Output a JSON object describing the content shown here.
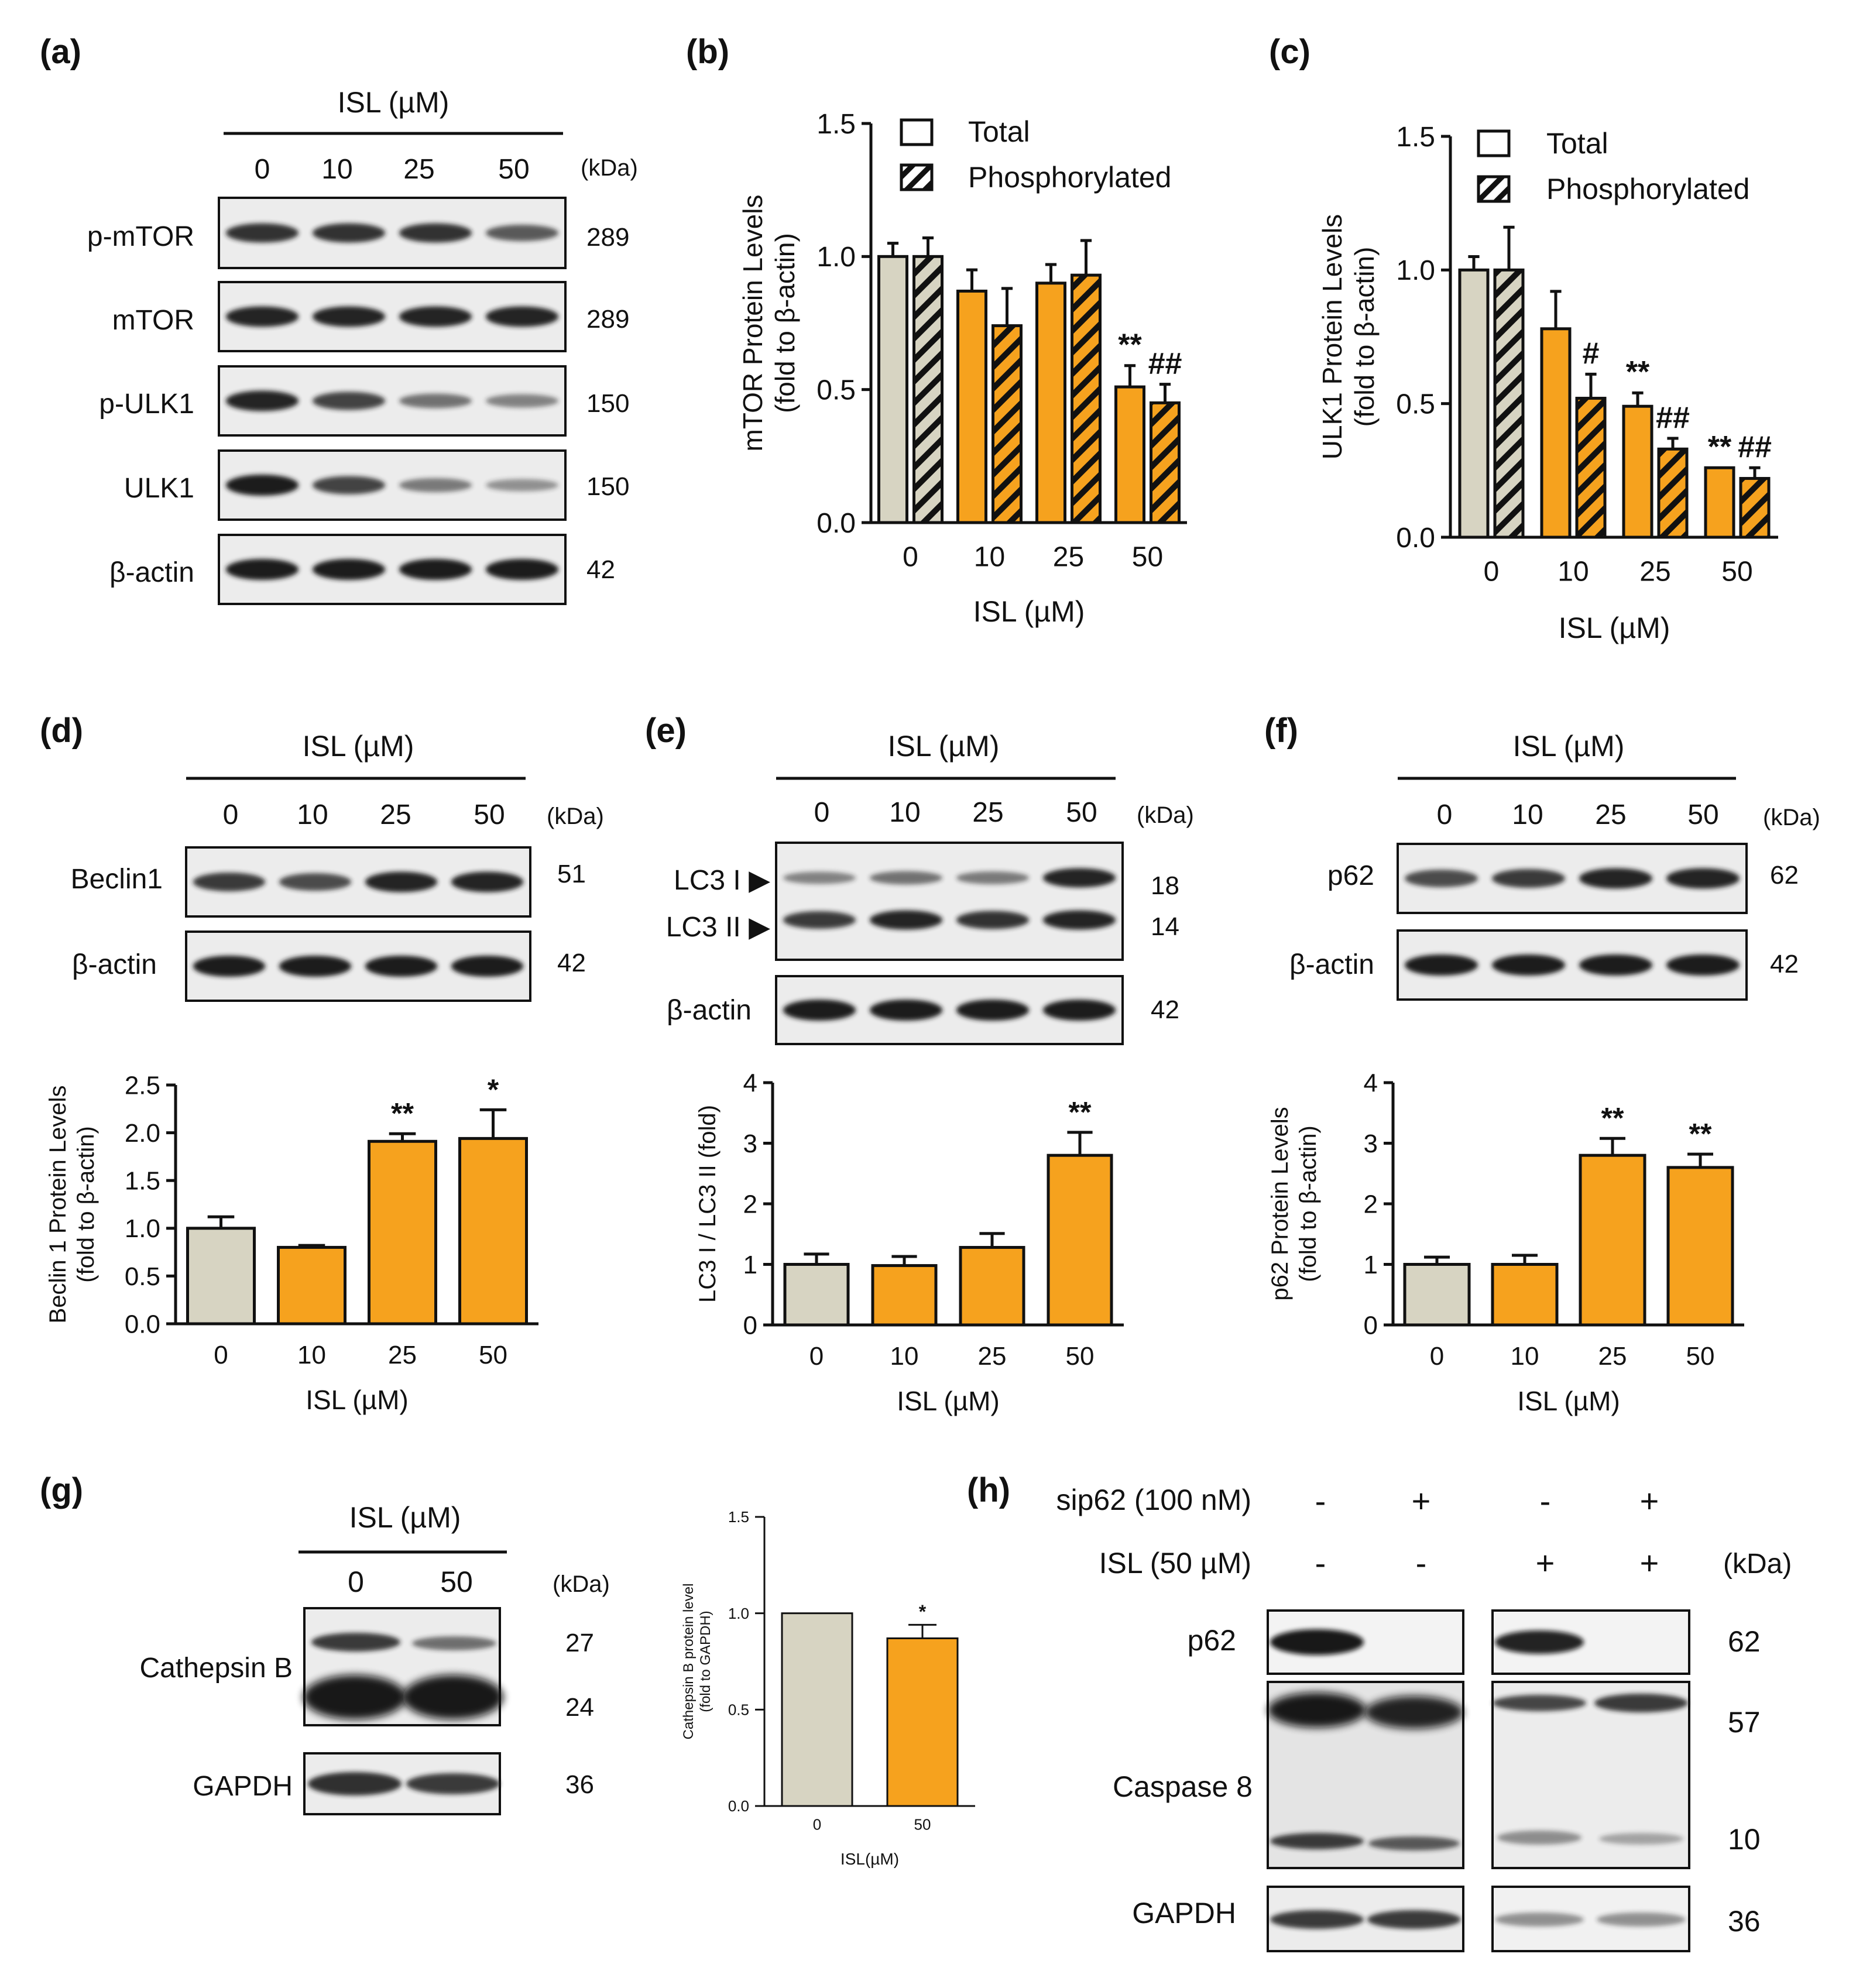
{
  "colors": {
    "control": "#d7d4c2",
    "treated": "#f6a21e",
    "axis": "#111111",
    "blot_bg": "#ececec",
    "band": "#1e1e1e"
  },
  "panels": {
    "a": {
      "letter": "(a)",
      "header": "ISL (µM)",
      "lanes": [
        "0",
        "10",
        "25",
        "50"
      ],
      "kda": "(kDa)",
      "blots": [
        {
          "label": "p-mTOR",
          "kda": "289",
          "intensity": [
            0.85,
            0.85,
            0.85,
            0.6
          ]
        },
        {
          "label": "mTOR",
          "kda": "289",
          "intensity": [
            0.95,
            0.95,
            0.95,
            0.95
          ]
        },
        {
          "label": "p-ULK1",
          "kda": "150",
          "intensity": [
            0.95,
            0.75,
            0.45,
            0.35
          ]
        },
        {
          "label": "ULK1",
          "kda": "150",
          "intensity": [
            1.0,
            0.75,
            0.4,
            0.25
          ]
        },
        {
          "label": "β-actin",
          "kda": "42",
          "intensity": [
            1.0,
            1.0,
            1.0,
            1.0
          ]
        }
      ]
    },
    "d_blot": {
      "letter": "(d)",
      "header": "ISL (µM)",
      "lanes": [
        "0",
        "10",
        "25",
        "50"
      ],
      "kda": "(kDa)",
      "blots": [
        {
          "label": "Beclin1",
          "kda": "51",
          "intensity": [
            0.8,
            0.7,
            0.95,
            0.95
          ]
        },
        {
          "label": "β-actin",
          "kda": "42",
          "intensity": [
            1.0,
            1.0,
            1.0,
            1.0
          ]
        }
      ]
    },
    "e_blot": {
      "letter": "(e)",
      "header": "ISL (µM)",
      "lanes": [
        "0",
        "10",
        "25",
        "50"
      ],
      "kda": "(kDa)",
      "lc3": {
        "label_top": "LC3 I ▶",
        "label_bottom": "LC3 II ▶",
        "kda_top": "18",
        "kda_bottom": "14",
        "intensity_top": [
          0.35,
          0.45,
          0.4,
          0.95
        ],
        "intensity_bottom": [
          0.8,
          0.95,
          0.85,
          0.95
        ]
      },
      "actin": {
        "label": "β-actin",
        "kda": "42",
        "intensity": [
          1.0,
          1.0,
          1.0,
          1.0
        ]
      }
    },
    "f_blot": {
      "letter": "(f)",
      "header": "ISL (µM)",
      "lanes": [
        "0",
        "10",
        "25",
        "50"
      ],
      "kda": "(kDa)",
      "blots": [
        {
          "label": "p62",
          "kda": "62",
          "intensity": [
            0.7,
            0.8,
            0.95,
            0.95
          ]
        },
        {
          "label": "β-actin",
          "kda": "42",
          "intensity": [
            1.0,
            1.0,
            1.0,
            1.0
          ]
        }
      ]
    },
    "g_blot": {
      "letter": "(g)",
      "header": "ISL (µM)",
      "lanes": [
        "0",
        "50"
      ],
      "kda": "(kDa)",
      "cathepsin": {
        "label": "Cathepsin B",
        "kda_top": "27",
        "kda_bottom": "24"
      },
      "gapdh": {
        "label": "GAPDH",
        "kda": "36"
      }
    },
    "h_blot": {
      "letter": "(h)",
      "sip62_label": "sip62 (100 nM)",
      "sip62_signs": [
        "-",
        "+",
        "-",
        "+"
      ],
      "isl_label": "ISL (50 µM)",
      "isl_signs": [
        "-",
        "-",
        "+",
        "+"
      ],
      "kda": "(kDa)",
      "p62": {
        "label": "p62",
        "kda": "62"
      },
      "casp8": {
        "label": "Caspase 8",
        "kda_top": "57",
        "kda_bottom": "10"
      },
      "gapdh": {
        "label": "GAPDH",
        "kda": "36"
      }
    }
  },
  "chart_data": [
    {
      "id": "b",
      "letter": "(b)",
      "type": "bar",
      "categories": [
        "0",
        "10",
        "25",
        "50"
      ],
      "series": [
        {
          "name": "Total",
          "values": [
            1.0,
            0.87,
            0.9,
            0.51
          ],
          "errors": [
            0.05,
            0.08,
            0.07,
            0.08
          ]
        },
        {
          "name": "Phosphorylated",
          "values": [
            1.0,
            0.74,
            0.93,
            0.45
          ],
          "errors": [
            0.07,
            0.14,
            0.13,
            0.07
          ]
        }
      ],
      "annotations": [
        {
          "series": 0,
          "index": 3,
          "text": "**"
        },
        {
          "series": 1,
          "index": 3,
          "text": "##"
        }
      ],
      "xlabel": "ISL (µM)",
      "ylabel": [
        "mTOR Protein Levels",
        "(fold to β-actin)"
      ],
      "ylim": [
        0,
        1.5
      ],
      "yticks": [
        "0.0",
        "0.5",
        "1.0",
        "1.5"
      ],
      "legend": "top-right"
    },
    {
      "id": "c",
      "letter": "(c)",
      "type": "bar",
      "categories": [
        "0",
        "10",
        "25",
        "50"
      ],
      "series": [
        {
          "name": "Total",
          "values": [
            1.0,
            0.78,
            0.49,
            0.26
          ],
          "errors": [
            0.05,
            0.14,
            0.05,
            0.0
          ]
        },
        {
          "name": "Phosphorylated",
          "values": [
            1.0,
            0.52,
            0.33,
            0.22
          ],
          "errors": [
            0.16,
            0.09,
            0.04,
            0.04
          ]
        }
      ],
      "annotations": [
        {
          "series": 1,
          "index": 1,
          "text": "#"
        },
        {
          "series": 0,
          "index": 2,
          "text": "**"
        },
        {
          "series": 1,
          "index": 2,
          "text": "##"
        },
        {
          "series": 0,
          "index": 3,
          "text": "**"
        },
        {
          "series": 1,
          "index": 3,
          "text": "##"
        }
      ],
      "xlabel": "ISL (µM)",
      "ylabel": [
        "ULK1 Protein Levels",
        "(fold to β-actin)"
      ],
      "ylim": [
        0,
        1.5
      ],
      "yticks": [
        "0.0",
        "0.5",
        "1.0",
        "1.5"
      ],
      "legend": "top-right"
    },
    {
      "id": "d",
      "type": "bar",
      "categories": [
        "0",
        "10",
        "25",
        "50"
      ],
      "series": [
        {
          "name": "Beclin 1",
          "values": [
            1.0,
            0.8,
            1.91,
            1.94
          ],
          "errors": [
            0.12,
            0.02,
            0.08,
            0.3
          ]
        }
      ],
      "annotations": [
        {
          "series": 0,
          "index": 2,
          "text": "**"
        },
        {
          "series": 0,
          "index": 3,
          "text": "*"
        }
      ],
      "xlabel": "ISL (µM)",
      "ylabel": [
        "Beclin 1 Protein Levels",
        "(fold to β-actin)"
      ],
      "ylim": [
        0,
        2.5
      ],
      "yticks": [
        "0.0",
        "0.5",
        "1.0",
        "1.5",
        "2.0",
        "2.5"
      ]
    },
    {
      "id": "e",
      "type": "bar",
      "categories": [
        "0",
        "10",
        "25",
        "50"
      ],
      "series": [
        {
          "name": "LC3 I / LC3 II",
          "values": [
            1.0,
            0.98,
            1.28,
            2.8
          ],
          "errors": [
            0.17,
            0.15,
            0.23,
            0.38
          ]
        }
      ],
      "annotations": [
        {
          "series": 0,
          "index": 3,
          "text": "**"
        }
      ],
      "xlabel": "ISL (µM)",
      "ylabel": [
        "LC3 I / LC3 II (fold)"
      ],
      "ylim": [
        0,
        4
      ],
      "yticks": [
        "0",
        "1",
        "2",
        "3",
        "4"
      ]
    },
    {
      "id": "f",
      "type": "bar",
      "categories": [
        "0",
        "10",
        "25",
        "50"
      ],
      "series": [
        {
          "name": "p62",
          "values": [
            1.0,
            1.0,
            2.8,
            2.6
          ],
          "errors": [
            0.12,
            0.15,
            0.28,
            0.22
          ]
        }
      ],
      "annotations": [
        {
          "series": 0,
          "index": 2,
          "text": "**"
        },
        {
          "series": 0,
          "index": 3,
          "text": "**"
        }
      ],
      "xlabel": "ISL (µM)",
      "ylabel": [
        "p62 Protein Levels",
        "(fold to β-actin)"
      ],
      "ylim": [
        0,
        4
      ],
      "yticks": [
        "0",
        "1",
        "2",
        "3",
        "4"
      ]
    },
    {
      "id": "g",
      "type": "bar",
      "categories": [
        "0",
        "50"
      ],
      "series": [
        {
          "name": "Cathepsin B",
          "values": [
            1.0,
            0.87
          ],
          "errors": [
            0.0,
            0.07
          ]
        }
      ],
      "annotations": [
        {
          "series": 0,
          "index": 1,
          "text": "*"
        }
      ],
      "xlabel": "ISL(µM)",
      "ylabel": [
        "Cathepsin B protein level",
        "(fold to GAPDH)"
      ],
      "ylim": [
        0,
        1.5
      ],
      "yticks": [
        "0.0",
        "0.5",
        "1.0",
        "1.5"
      ]
    }
  ]
}
